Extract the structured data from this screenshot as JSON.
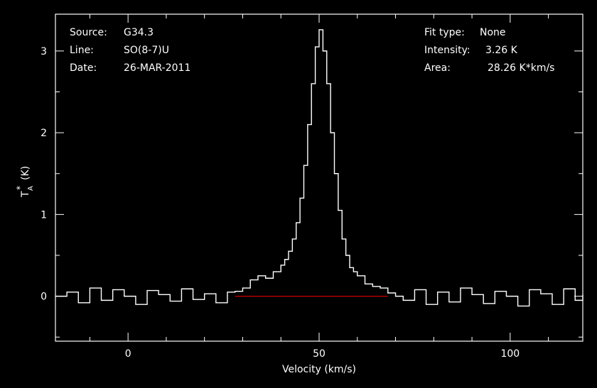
{
  "colors": {
    "background": "#000000",
    "foreground": "#ffffff",
    "baseline": "#cc0000"
  },
  "info_left": {
    "source_label": "Source:",
    "source_value": "G34.3",
    "line_label": "Line:",
    "line_value": "SO(8-7)U",
    "date_label": "Date:",
    "date_value": "26-MAR-2011"
  },
  "info_right": {
    "fit_label": "Fit type:",
    "fit_value": "None",
    "intensity_label": "Intensity:",
    "intensity_value": "3.26 K",
    "area_label": "Area:",
    "area_value": "28.26 K*km/s"
  },
  "chart_data": {
    "type": "line",
    "title": "",
    "xlabel": "Velocity (km/s)",
    "ylabel_main": "T",
    "ylabel_sub": "A",
    "ylabel_sup": "*",
    "ylabel_unit": "(K)",
    "xlim": [
      -19,
      119
    ],
    "ylim": [
      -0.55,
      3.45
    ],
    "xticks": [
      0,
      50,
      100
    ],
    "yticks": [
      0,
      1,
      2,
      3
    ],
    "grid": false,
    "baseline": {
      "y": 0.0,
      "x": [
        28,
        68
      ]
    },
    "series": [
      {
        "x": [
          -19,
          -16,
          -13,
          -10,
          -7,
          -4,
          -1,
          2,
          5,
          8,
          11,
          14,
          17,
          20,
          23,
          26,
          28,
          30,
          32,
          34,
          36,
          38,
          40,
          41,
          42,
          43,
          44,
          45,
          46,
          47,
          48,
          49,
          50,
          51,
          52,
          53,
          54,
          55,
          56,
          57,
          58,
          59,
          60,
          62,
          64,
          66,
          68,
          70,
          72,
          75,
          78,
          81,
          84,
          87,
          90,
          93,
          96,
          99,
          102,
          105,
          108,
          111,
          114,
          117,
          119
        ],
        "y": [
          0.0,
          0.05,
          -0.08,
          0.1,
          -0.05,
          0.08,
          0.0,
          -0.1,
          0.07,
          0.02,
          -0.06,
          0.09,
          -0.04,
          0.03,
          -0.08,
          0.05,
          0.06,
          0.1,
          0.2,
          0.25,
          0.22,
          0.3,
          0.38,
          0.45,
          0.55,
          0.7,
          0.9,
          1.2,
          1.6,
          2.1,
          2.6,
          3.05,
          3.26,
          3.0,
          2.6,
          2.0,
          1.5,
          1.05,
          0.7,
          0.5,
          0.35,
          0.3,
          0.25,
          0.15,
          0.12,
          0.1,
          0.04,
          0.0,
          -0.05,
          0.08,
          -0.1,
          0.05,
          -0.07,
          0.1,
          0.02,
          -0.09,
          0.06,
          0.0,
          -0.12,
          0.08,
          0.03,
          -0.1,
          0.09,
          -0.05,
          0.02
        ]
      }
    ]
  }
}
